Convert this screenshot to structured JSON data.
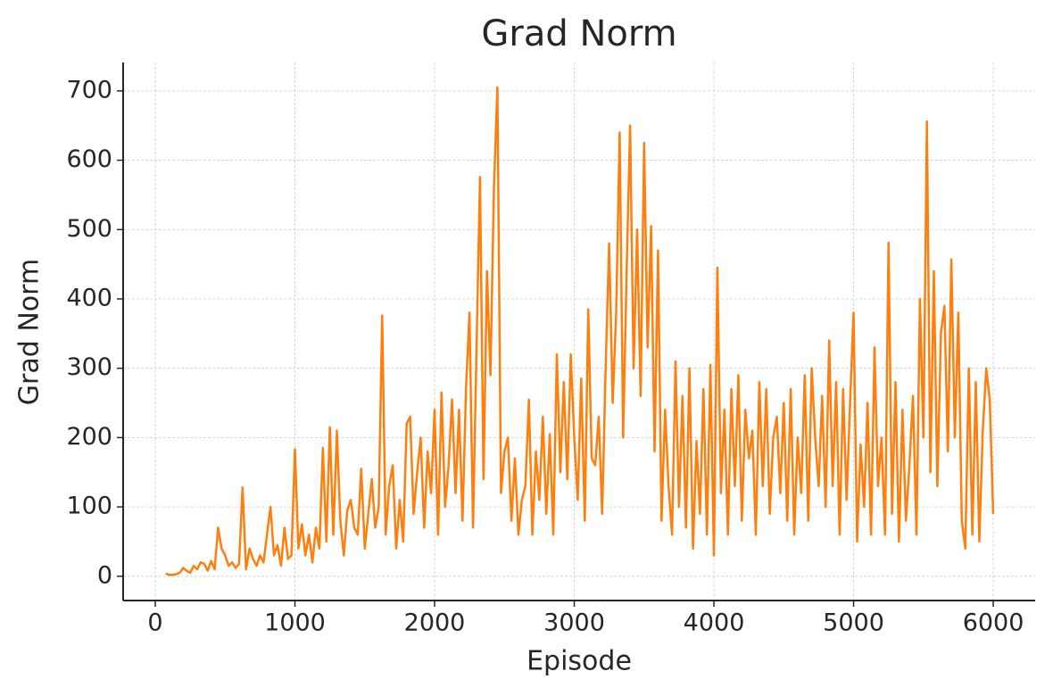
{
  "chart_data": {
    "type": "line",
    "title": "Grad Norm",
    "xlabel": "Episode",
    "ylabel": "Grad Norm",
    "x": [
      75,
      100,
      125,
      150,
      175,
      200,
      225,
      250,
      275,
      300,
      325,
      350,
      375,
      400,
      425,
      450,
      475,
      500,
      525,
      550,
      575,
      600,
      625,
      650,
      675,
      700,
      725,
      750,
      775,
      800,
      825,
      850,
      875,
      900,
      925,
      950,
      975,
      1000,
      1025,
      1050,
      1075,
      1100,
      1125,
      1150,
      1175,
      1200,
      1225,
      1250,
      1275,
      1300,
      1325,
      1350,
      1375,
      1400,
      1425,
      1450,
      1475,
      1500,
      1525,
      1550,
      1575,
      1600,
      1625,
      1650,
      1675,
      1700,
      1725,
      1750,
      1775,
      1800,
      1825,
      1850,
      1875,
      1900,
      1925,
      1950,
      1975,
      2000,
      2025,
      2050,
      2075,
      2100,
      2125,
      2150,
      2175,
      2200,
      2225,
      2250,
      2275,
      2300,
      2325,
      2350,
      2375,
      2400,
      2425,
      2450,
      2475,
      2500,
      2525,
      2550,
      2575,
      2600,
      2625,
      2650,
      2675,
      2700,
      2725,
      2750,
      2775,
      2800,
      2825,
      2850,
      2875,
      2900,
      2925,
      2950,
      2975,
      3000,
      3025,
      3050,
      3075,
      3100,
      3125,
      3150,
      3175,
      3200,
      3225,
      3250,
      3275,
      3300,
      3325,
      3350,
      3375,
      3400,
      3425,
      3450,
      3475,
      3500,
      3525,
      3550,
      3575,
      3600,
      3625,
      3650,
      3675,
      3700,
      3725,
      3750,
      3775,
      3800,
      3825,
      3850,
      3875,
      3900,
      3925,
      3950,
      3975,
      4000,
      4025,
      4050,
      4075,
      4100,
      4125,
      4150,
      4175,
      4200,
      4225,
      4250,
      4275,
      4300,
      4325,
      4350,
      4375,
      4400,
      4425,
      4450,
      4475,
      4500,
      4525,
      4550,
      4575,
      4600,
      4625,
      4650,
      4675,
      4700,
      4725,
      4750,
      4775,
      4800,
      4825,
      4850,
      4875,
      4900,
      4925,
      4950,
      4975,
      5000,
      5025,
      5050,
      5075,
      5100,
      5125,
      5150,
      5175,
      5200,
      5225,
      5250,
      5275,
      5300,
      5325,
      5350,
      5375,
      5400,
      5425,
      5450,
      5475,
      5500,
      5525,
      5550,
      5575,
      5600,
      5625,
      5650,
      5675,
      5700,
      5725,
      5750,
      5775,
      5800,
      5825,
      5850,
      5875,
      5900,
      5925,
      5950,
      5975,
      6000
    ],
    "series": [
      {
        "name": "Grad Norm",
        "color": "#ff7f0e",
        "values": [
          4,
          2,
          2,
          3,
          5,
          12,
          8,
          5,
          15,
          10,
          20,
          18,
          8,
          22,
          10,
          70,
          40,
          30,
          15,
          20,
          12,
          18,
          128,
          10,
          40,
          25,
          15,
          30,
          20,
          60,
          100,
          30,
          45,
          15,
          70,
          25,
          30,
          183,
          40,
          75,
          30,
          60,
          20,
          70,
          40,
          185,
          50,
          215,
          60,
          210,
          80,
          30,
          95,
          110,
          70,
          60,
          155,
          40,
          90,
          140,
          70,
          100,
          376,
          60,
          130,
          160,
          40,
          110,
          50,
          220,
          230,
          90,
          150,
          200,
          70,
          180,
          120,
          240,
          60,
          265,
          100,
          160,
          255,
          120,
          240,
          80,
          270,
          380,
          70,
          330,
          576,
          140,
          440,
          290,
          560,
          705,
          120,
          180,
          200,
          80,
          170,
          60,
          110,
          130,
          255,
          60,
          180,
          110,
          230,
          90,
          205,
          60,
          320,
          150,
          280,
          140,
          320,
          200,
          110,
          285,
          80,
          385,
          170,
          160,
          230,
          90,
          300,
          480,
          250,
          380,
          640,
          200,
          440,
          650,
          300,
          500,
          260,
          625,
          330,
          505,
          180,
          470,
          80,
          240,
          130,
          60,
          310,
          100,
          260,
          70,
          300,
          40,
          195,
          90,
          270,
          60,
          305,
          30,
          445,
          120,
          240,
          60,
          270,
          130,
          290,
          80,
          240,
          170,
          210,
          60,
          280,
          130,
          270,
          90,
          200,
          230,
          120,
          250,
          80,
          270,
          60,
          200,
          120,
          290,
          80,
          300,
          200,
          130,
          260,
          100,
          340,
          130,
          280,
          60,
          270,
          110,
          250,
          380,
          50,
          190,
          100,
          250,
          60,
          330,
          130,
          200,
          60,
          481,
          90,
          280,
          50,
          240,
          80,
          160,
          260,
          60,
          400,
          200,
          656,
          150,
          440,
          130,
          350,
          390,
          180,
          457,
          200,
          380,
          80,
          40,
          300,
          60,
          280,
          50,
          210,
          300,
          255,
          90
        ]
      }
    ],
    "xlim": [
      -230,
      6300
    ],
    "ylim": [
      -35,
      741
    ],
    "xticks": [
      0,
      1000,
      2000,
      3000,
      4000,
      5000,
      6000
    ],
    "yticks": [
      0,
      100,
      200,
      300,
      400,
      500,
      600,
      700
    ],
    "grid": true
  }
}
